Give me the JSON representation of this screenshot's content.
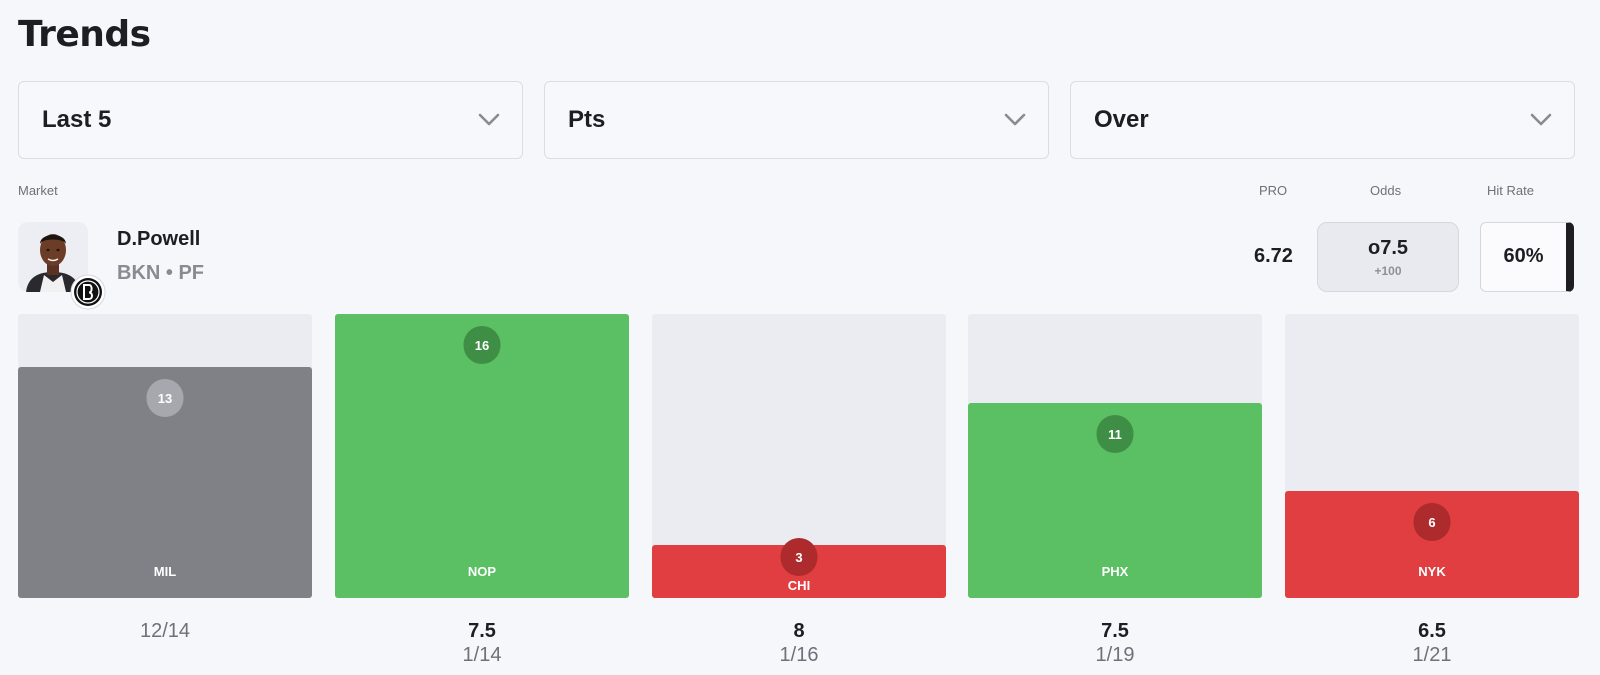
{
  "page": {
    "title": "Trends"
  },
  "filters": {
    "range": "Last 5",
    "stat": "Pts",
    "side": "Over"
  },
  "headers": {
    "market": "Market",
    "pro": "PRO",
    "odds": "Odds",
    "hit_rate": "Hit Rate"
  },
  "player": {
    "name": "D.Powell",
    "meta": "BKN • PF",
    "pro": "6.72",
    "odds_line": "o7.5",
    "odds_price": "+100",
    "hit_rate": "60%"
  },
  "chart_data": {
    "type": "bar",
    "categories": [
      "MIL",
      "NOP",
      "CHI",
      "PHX",
      "NYK"
    ],
    "values": [
      13,
      16,
      3,
      11,
      6
    ],
    "lines": [
      "",
      "7.5",
      "8",
      "7.5",
      "6.5"
    ],
    "dates": [
      "12/14",
      "1/14",
      "1/16",
      "1/19",
      "1/21"
    ],
    "results": [
      "none",
      "hit",
      "miss",
      "hit",
      "miss"
    ],
    "ylim": [
      0,
      16
    ],
    "colors": {
      "hit": "#5bc064",
      "miss": "#e03e40",
      "none": "#808187"
    }
  }
}
